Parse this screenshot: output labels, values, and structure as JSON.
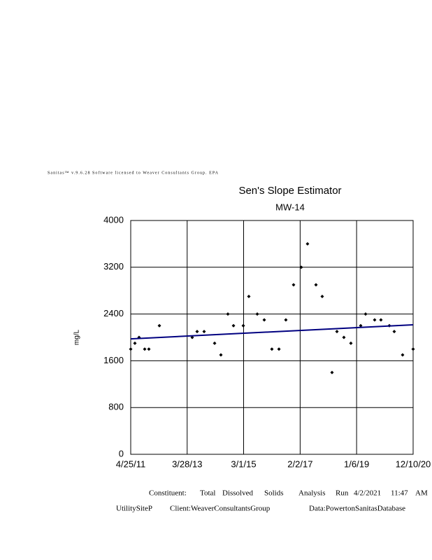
{
  "header": "Sanitas™ v.9.6.28 Software licensed to Weaver Consultants Group. EPA",
  "chart_data": {
    "type": "scatter",
    "title": "Sen's Slope Estimator",
    "subtitle": "MW-14",
    "y_label": "mg/L",
    "xlim": [
      "2011-04-25",
      "2020-12-10"
    ],
    "xticks": [
      {
        "value": "2011-04-25",
        "label": "4/25/11"
      },
      {
        "value": "2013-03-28",
        "label": "3/28/13"
      },
      {
        "value": "2015-03-01",
        "label": "3/1/15"
      },
      {
        "value": "2017-02-02",
        "label": "2/2/17"
      },
      {
        "value": "2019-01-06",
        "label": "1/6/19"
      },
      {
        "value": "2020-12-10",
        "label": "12/10/20"
      }
    ],
    "ylim": [
      0,
      4000
    ],
    "yticks": [
      0,
      800,
      1600,
      2400,
      3200,
      4000
    ],
    "grid": true,
    "series": [
      {
        "color": "#000000",
        "x": [
          "2011-04-25",
          "2011-06-16",
          "2011-08-07",
          "2011-10-16",
          "2011-12-07",
          "2012-04-16",
          "2013-05-30",
          "2013-07-30",
          "2013-10-25",
          "2014-03-05",
          "2014-05-22",
          "2014-08-17",
          "2014-10-26",
          "2015-02-25",
          "2015-05-05",
          "2015-08-18",
          "2015-11-13",
          "2016-02-16",
          "2016-05-14",
          "2016-08-08",
          "2016-11-12",
          "2017-02-16",
          "2017-05-05",
          "2017-08-18",
          "2017-11-04",
          "2018-03-06",
          "2018-05-06",
          "2018-08-01",
          "2018-10-27",
          "2019-02-26",
          "2019-04-28",
          "2019-08-19",
          "2019-11-05",
          "2020-02-18",
          "2020-04-19",
          "2020-08-01",
          "2020-12-10"
        ],
        "values": [
          1800,
          1900,
          2000,
          1800,
          1800,
          2200,
          2000,
          2100,
          2100,
          1900,
          1700,
          2400,
          2200,
          2200,
          2700,
          2400,
          2300,
          1800,
          1800,
          2300,
          2900,
          3200,
          3600,
          2900,
          2700,
          1400,
          2100,
          2000,
          1900,
          2200,
          2400,
          2300,
          2300,
          2200,
          2100,
          1700,
          1800
        ]
      }
    ],
    "trend": {
      "color": "#000080",
      "x": [
        "2011-04-25",
        "2020-12-10"
      ],
      "values": [
        1975,
        2215
      ]
    }
  },
  "footer": {
    "line1": [
      "Constituent:",
      "Total",
      "Dissolved",
      "Solids",
      "Analysis",
      "Run",
      "4/2/2021",
      "11:47",
      "AM"
    ],
    "line2": [
      "UtilitySiteP",
      "Client:WeaverConsultantsGroup",
      "Data:PowertonSanitasDatabase"
    ]
  }
}
